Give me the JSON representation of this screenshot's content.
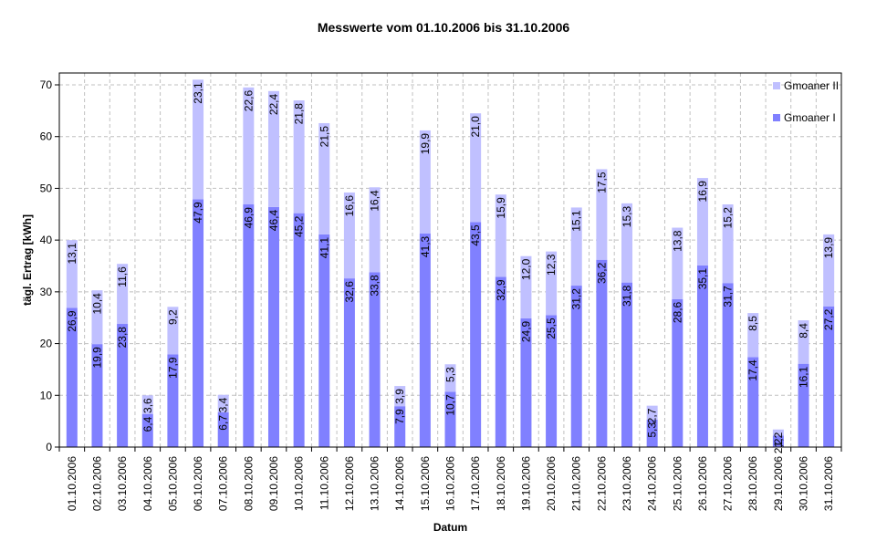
{
  "chart_data": {
    "type": "bar",
    "stacked": true,
    "title": "Messwerte vom 01.10.2006 bis 31.10.2006",
    "xlabel": "Datum",
    "ylabel": "tägl. Ertrag [kWh]",
    "ylim": [
      0,
      70
    ],
    "yticks": [
      0,
      10,
      20,
      30,
      40,
      50,
      60,
      70
    ],
    "grid": true,
    "legend_position": "top-right inside",
    "categories": [
      "01.10.2006",
      "02.10.2006",
      "03.10.2006",
      "04.10.2006",
      "05.10.2006",
      "06.10.2006",
      "07.10.2006",
      "08.10.2006",
      "09.10.2006",
      "10.10.2006",
      "11.10.2006",
      "12.10.2006",
      "13.10.2006",
      "14.10.2006",
      "15.10.2006",
      "16.10.2006",
      "17.10.2006",
      "18.10.2006",
      "19.10.2006",
      "20.10.2006",
      "21.10.2006",
      "22.10.2006",
      "23.10.2006",
      "24.10.2006",
      "25.10.2006",
      "26.10.2006",
      "27.10.2006",
      "28.10.2006",
      "29.10.2006",
      "30.10.2006",
      "31.10.2006"
    ],
    "series": [
      {
        "name": "Gmoaner I",
        "color": "#8080ff",
        "values": [
          26.9,
          19.9,
          23.8,
          6.4,
          17.9,
          47.9,
          6.7,
          46.9,
          46.4,
          45.2,
          41.1,
          32.6,
          33.8,
          7.9,
          41.3,
          10.7,
          43.5,
          32.9,
          24.9,
          25.5,
          31.2,
          36.2,
          31.8,
          5.3,
          28.6,
          35.1,
          31.7,
          17.4,
          2.2,
          16.1,
          27.2
        ]
      },
      {
        "name": "Gmoaner II",
        "color": "#c0c0ff",
        "values": [
          13.1,
          10.4,
          11.6,
          3.6,
          9.2,
          23.1,
          3.4,
          22.6,
          22.4,
          21.8,
          21.5,
          16.6,
          16.4,
          3.9,
          19.9,
          5.3,
          21.0,
          15.9,
          12.0,
          12.3,
          15.1,
          17.5,
          15.3,
          2.7,
          13.8,
          16.9,
          15.2,
          8.5,
          1.2,
          8.4,
          13.9
        ]
      }
    ],
    "legend": [
      "Gmoaner II",
      "Gmoaner I"
    ]
  }
}
